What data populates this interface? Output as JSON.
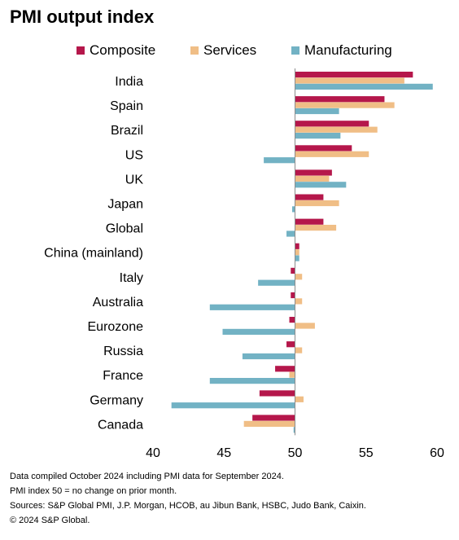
{
  "chart_data": {
    "type": "bar",
    "title": "PMI output index",
    "categories": [
      "India",
      "Spain",
      "Brazil",
      "US",
      "UK",
      "Japan",
      "Global",
      "China (mainland)",
      "Italy",
      "Australia",
      "Eurozone",
      "Russia",
      "France",
      "Germany",
      "Canada"
    ],
    "series": [
      {
        "name": "Composite",
        "color": "#b5174b",
        "values": [
          58.3,
          56.3,
          55.2,
          54.0,
          52.6,
          52.0,
          52.0,
          50.3,
          49.7,
          49.7,
          49.6,
          49.4,
          48.6,
          47.5,
          47.0
        ]
      },
      {
        "name": "Services",
        "color": "#f0be86",
        "values": [
          57.7,
          57.0,
          55.8,
          55.2,
          52.4,
          53.1,
          52.9,
          50.3,
          50.5,
          50.5,
          51.4,
          50.5,
          49.6,
          50.6,
          46.4
        ]
      },
      {
        "name": "Manufacturing",
        "color": "#72b2c4",
        "values": [
          59.7,
          53.1,
          53.2,
          47.8,
          53.6,
          49.8,
          49.4,
          50.3,
          47.4,
          44.0,
          44.9,
          46.3,
          44.0,
          41.3,
          49.9
        ]
      }
    ],
    "xlim": [
      40,
      60
    ],
    "xticks": [
      40,
      45,
      50,
      55,
      60
    ],
    "baseline": 50,
    "legend": "top"
  },
  "notes": [
    "Data compiled October 2024 including PMI data for September 2024.",
    "PMI index 50 = no change on prior month.",
    "Sources: S&P Global PMI, J.P. Morgan, HCOB, au Jibun Bank, HSBC, Judo Bank, Caixin.",
    "© 2024 S&P Global."
  ]
}
